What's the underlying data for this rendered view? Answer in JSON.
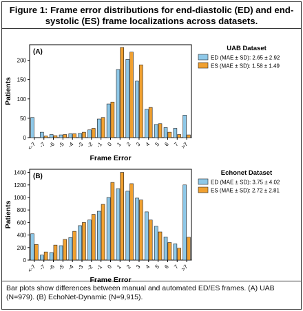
{
  "figure_title": "Figure 1: Frame error distributions for end-diastolic (ED) and end-systolic (ES) frame localizations across datasets.",
  "caption": "Bar plots show differences between manual and automated ED/ES frames. (A) UAB (N=979). (B) EchoNet-Dynamic (N=9,915).",
  "colors": {
    "ED": "#8ec8e8",
    "ES": "#f0a030",
    "edge": "#222222"
  },
  "chart_data": [
    {
      "type": "bar",
      "panel_label": "(A)",
      "legend_title": "UAB Dataset",
      "legend_position": "right",
      "xlabel": "Frame Error",
      "ylabel": "Patients",
      "ylim": [
        0,
        240
      ],
      "yticks": [
        0,
        50,
        100,
        150,
        200
      ],
      "categories": [
        "<-7",
        "-7",
        "-6",
        "-5",
        "-4",
        "-3",
        "-2",
        "-1",
        "0",
        "1",
        "2",
        "3",
        "4",
        "5",
        "6",
        "7",
        ">7"
      ],
      "series": [
        {
          "name": "ED (MAE ± SD): 2.65 ± 2.92",
          "values": [
            52,
            14,
            8,
            7,
            10,
            11,
            20,
            48,
            87,
            176,
            202,
            146,
            73,
            34,
            26,
            24,
            58
          ]
        },
        {
          "name": "ES (MAE ± SD): 1.58 ± 1.49",
          "values": [
            0,
            4,
            5,
            8,
            10,
            14,
            24,
            52,
            92,
            233,
            221,
            188,
            78,
            36,
            14,
            8,
            7
          ]
        }
      ]
    },
    {
      "type": "bar",
      "panel_label": "(B)",
      "legend_title": "Echonet Dataset",
      "legend_position": "right",
      "xlabel": "Frame Error",
      "ylabel": "Patients",
      "ylim": [
        0,
        1450
      ],
      "yticks": [
        0,
        200,
        400,
        600,
        800,
        1000,
        1200,
        1400
      ],
      "categories": [
        "<-7",
        "-7",
        "-6",
        "-5",
        "-4",
        "-3",
        "-2",
        "-1",
        "0",
        "1",
        "2",
        "3",
        "4",
        "5",
        "6",
        "7",
        ">7"
      ],
      "series": [
        {
          "name": "ED (MAE ± SD): 3.75 ± 4.02",
          "values": [
            420,
            80,
            120,
            230,
            360,
            550,
            640,
            780,
            1000,
            1140,
            1100,
            990,
            770,
            540,
            370,
            260,
            1200
          ]
        },
        {
          "name": "ES (MAE ± SD): 2.72 ± 2.81",
          "values": [
            250,
            130,
            240,
            330,
            460,
            600,
            730,
            890,
            1240,
            1400,
            1220,
            960,
            640,
            450,
            280,
            190,
            365
          ]
        }
      ]
    }
  ]
}
